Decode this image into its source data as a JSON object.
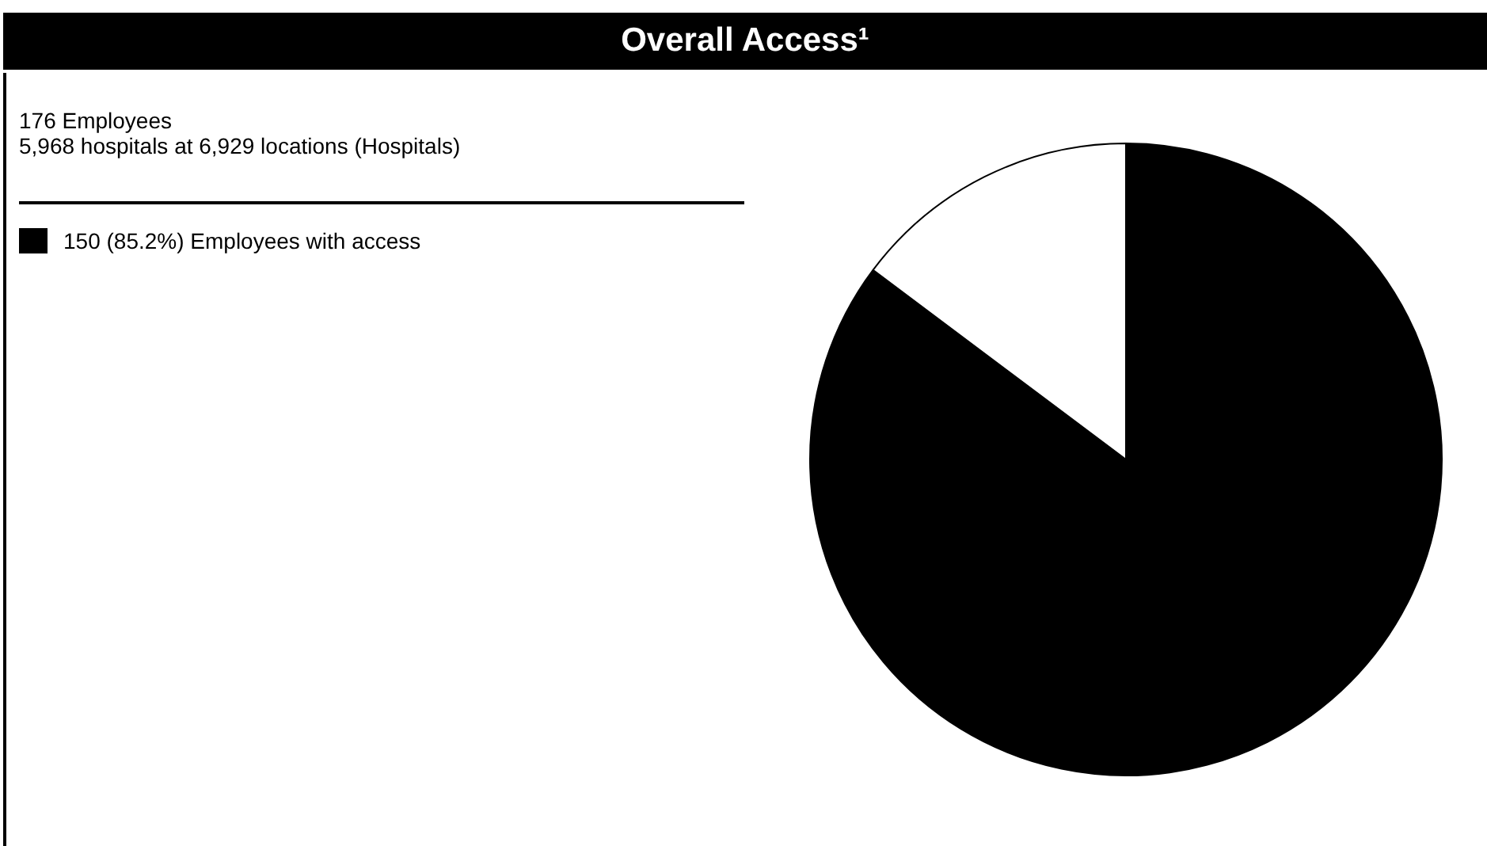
{
  "chart_data": {
    "type": "pie",
    "title": "Overall Access¹",
    "subtitle": "176 Employees",
    "annotations": [
      "5,968 hospitals at 6,929 locations (Hospitals)"
    ],
    "categories": [
      "150 (85.2%) Employees with access",
      null
    ],
    "values": [
      150,
      26
    ],
    "colors": [
      "#000000",
      "#ffffff"
    ],
    "legend": "top left"
  }
}
